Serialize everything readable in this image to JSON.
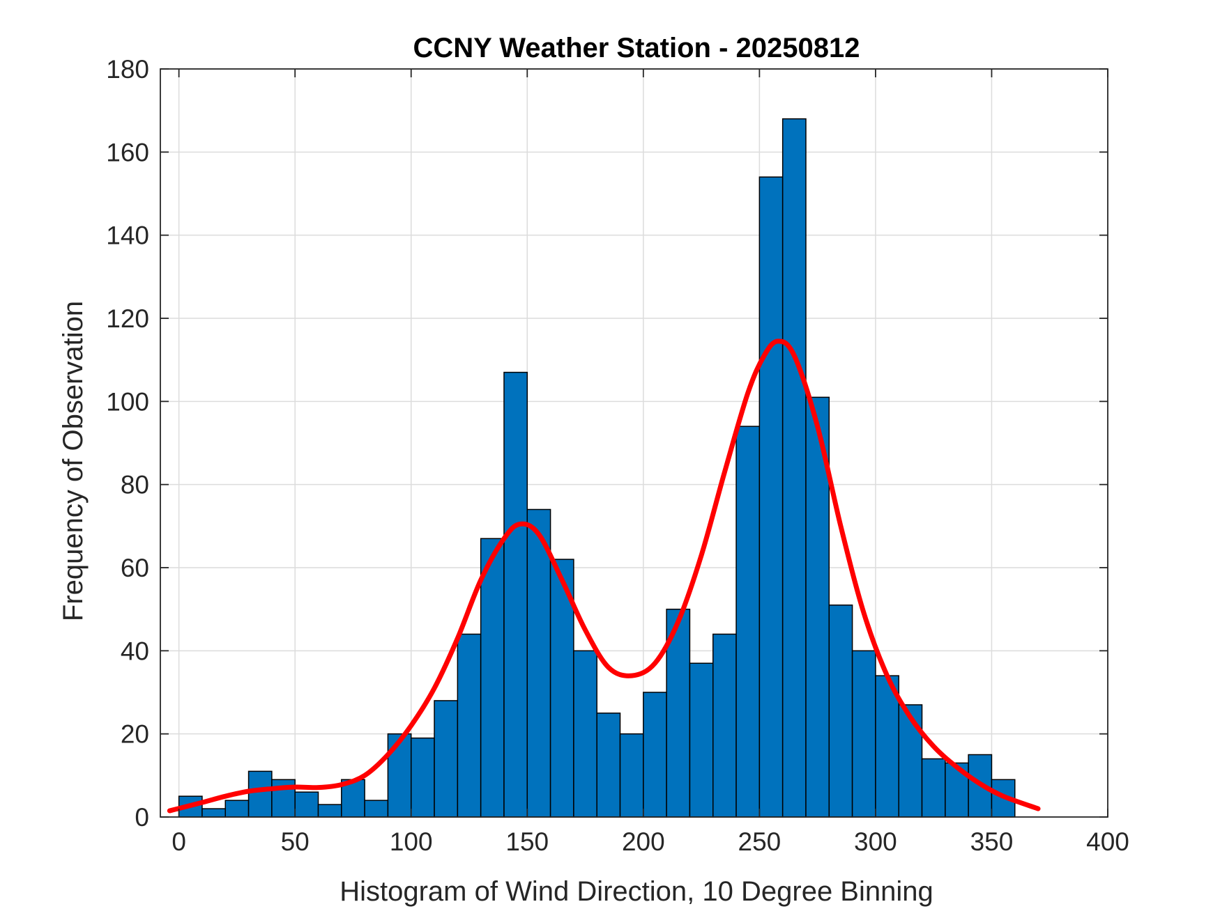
{
  "chart_data": {
    "type": "bar",
    "title": "CCNY Weather Station - 20250812",
    "xlabel": "Histogram of Wind Direction, 10 Degree Binning",
    "ylabel": "Frequency of Observation",
    "xlim": [
      -8,
      400
    ],
    "ylim": [
      0,
      180
    ],
    "xticks": [
      0,
      50,
      100,
      150,
      200,
      250,
      300,
      350,
      400
    ],
    "yticks": [
      0,
      20,
      40,
      60,
      80,
      100,
      120,
      140,
      160,
      180
    ],
    "grid": true,
    "bin_width": 10,
    "bin_edges_start": [
      0,
      10,
      20,
      30,
      40,
      50,
      60,
      70,
      80,
      90,
      100,
      110,
      120,
      130,
      140,
      150,
      160,
      170,
      180,
      190,
      200,
      210,
      220,
      230,
      240,
      250,
      260,
      270,
      280,
      290,
      300,
      310,
      320,
      330,
      340,
      350
    ],
    "values": [
      5,
      2,
      4,
      11,
      9,
      6,
      3,
      9,
      4,
      20,
      19,
      28,
      44,
      67,
      107,
      74,
      62,
      40,
      25,
      20,
      30,
      50,
      37,
      44,
      94,
      154,
      168,
      101,
      51,
      40,
      34,
      27,
      14,
      13,
      15,
      9
    ],
    "bar_color": "#0072BD",
    "fit_curve": {
      "name": "fit",
      "color": "#FF0000",
      "x": [
        -4,
        10,
        20,
        30,
        40,
        50,
        60,
        70,
        80,
        90,
        100,
        110,
        120,
        130,
        140,
        147,
        155,
        165,
        175,
        185,
        195,
        205,
        215,
        225,
        235,
        245,
        252,
        258,
        265,
        275,
        285,
        295,
        305,
        315,
        325,
        335,
        345,
        355,
        370
      ],
      "y": [
        1.5,
        3.5,
        5,
        6.2,
        6.8,
        7.2,
        7.1,
        7.8,
        10,
        15,
        22,
        31,
        43,
        57,
        67,
        70.5,
        68,
        57,
        45,
        36,
        34,
        37,
        47,
        63,
        83,
        102,
        111,
        114.5,
        111,
        94,
        70,
        49,
        34,
        24,
        17,
        12,
        8,
        5,
        2
      ]
    }
  }
}
